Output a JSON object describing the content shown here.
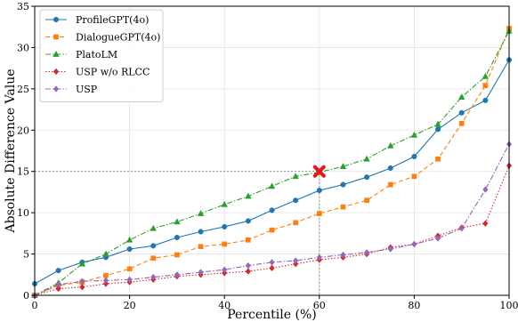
{
  "chart_data": {
    "type": "line",
    "xlabel": "Percentile (%)",
    "ylabel": "Absolute Difference Value",
    "xlim": [
      0,
      100
    ],
    "ylim": [
      0,
      35
    ],
    "xticks": [
      0,
      20,
      40,
      60,
      80,
      100
    ],
    "yticks": [
      0,
      5,
      10,
      15,
      20,
      25,
      30,
      35
    ],
    "grid": true,
    "legend_position": "top-left",
    "x": [
      0,
      5,
      10,
      15,
      20,
      25,
      30,
      35,
      40,
      45,
      50,
      55,
      60,
      65,
      70,
      75,
      80,
      85,
      90,
      95,
      100
    ],
    "series": [
      {
        "name": "ProfileGPT(4o)",
        "color": "#1f77b4",
        "marker": "circle",
        "dash": "solid",
        "values": [
          1.4,
          3.0,
          4.0,
          4.6,
          5.6,
          6.0,
          7.0,
          7.7,
          8.3,
          9.0,
          10.3,
          11.5,
          12.7,
          13.4,
          14.3,
          15.4,
          16.8,
          20.1,
          22.1,
          23.6,
          28.5
        ]
      },
      {
        "name": "DialogueGPT(4o)",
        "color": "#ff7f0e",
        "marker": "square",
        "dash": "dashed",
        "values": [
          0.0,
          1.2,
          1.6,
          2.4,
          3.2,
          4.5,
          4.9,
          5.9,
          6.2,
          6.7,
          7.9,
          8.8,
          9.9,
          10.7,
          11.5,
          13.4,
          14.4,
          16.5,
          20.8,
          25.4,
          32.3
        ]
      },
      {
        "name": "PlatoLM",
        "color": "#2ca02c",
        "marker": "triangle",
        "dash": "dashdot",
        "values": [
          0.0,
          1.5,
          3.8,
          5.0,
          6.7,
          8.1,
          8.9,
          9.9,
          11.0,
          12.0,
          13.2,
          14.4,
          14.9,
          15.6,
          16.5,
          18.1,
          19.4,
          20.7,
          24.0,
          26.5,
          32.0
        ]
      },
      {
        "name": "USP w/o RLCC",
        "color": "#d62728",
        "marker": "diamond",
        "dash": "dotted",
        "values": [
          0.0,
          0.8,
          1.0,
          1.4,
          1.6,
          1.9,
          2.3,
          2.5,
          2.7,
          2.9,
          3.3,
          3.8,
          4.3,
          4.6,
          5.0,
          5.8,
          6.2,
          7.2,
          8.2,
          8.7,
          15.7
        ]
      },
      {
        "name": "USP",
        "color": "#9467bd",
        "marker": "diamond",
        "dash": "dashdot",
        "values": [
          0.0,
          1.3,
          1.7,
          1.8,
          1.9,
          2.2,
          2.5,
          2.8,
          3.1,
          3.6,
          4.0,
          4.2,
          4.6,
          4.9,
          5.2,
          5.6,
          6.2,
          6.9,
          8.1,
          12.8,
          18.3
        ]
      }
    ],
    "annotation": {
      "marker": "X",
      "color": "#e8161b",
      "x": 60,
      "y": 15,
      "guide_lines": true
    }
  }
}
